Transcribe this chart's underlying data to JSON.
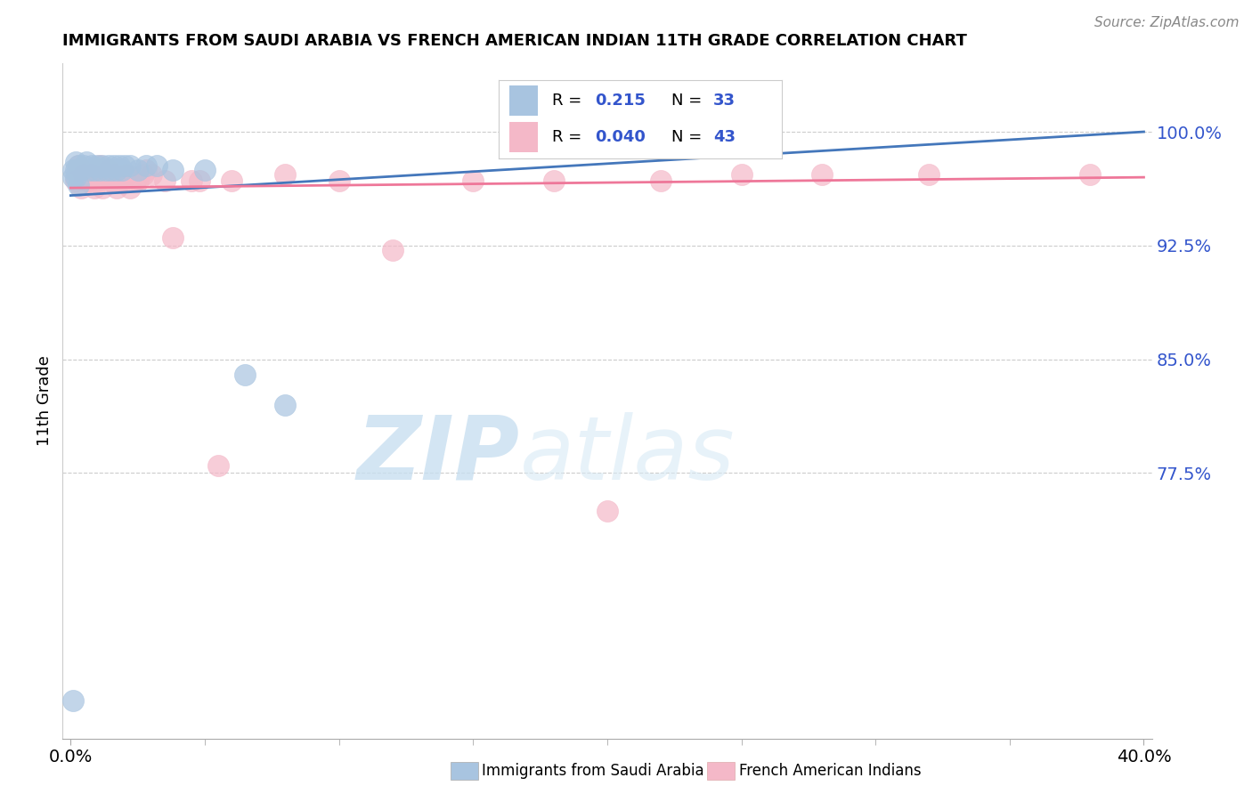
{
  "title": "IMMIGRANTS FROM SAUDI ARABIA VS FRENCH AMERICAN INDIAN 11TH GRADE CORRELATION CHART",
  "source": "Source: ZipAtlas.com",
  "ylabel": "11th Grade",
  "ytick_labels": [
    "100.0%",
    "92.5%",
    "85.0%",
    "77.5%"
  ],
  "ytick_values": [
    1.0,
    0.925,
    0.85,
    0.775
  ],
  "xlim": [
    0.0,
    0.4
  ],
  "ylim": [
    0.6,
    1.04
  ],
  "saudi_color": "#a8c4e0",
  "french_color": "#f4b8c8",
  "saudi_line_color": "#4477bb",
  "french_line_color": "#ee7799",
  "saudi_x": [
    0.002,
    0.003,
    0.004,
    0.005,
    0.006,
    0.007,
    0.008,
    0.009,
    0.01,
    0.011,
    0.012,
    0.013,
    0.014,
    0.015,
    0.016,
    0.017,
    0.018,
    0.019,
    0.02,
    0.022,
    0.025,
    0.028,
    0.032,
    0.038,
    0.05,
    0.065,
    0.08,
    0.001,
    0.002,
    0.003,
    0.001,
    0.001,
    0.002
  ],
  "saudi_y": [
    0.98,
    0.978,
    0.975,
    0.978,
    0.98,
    0.975,
    0.978,
    0.975,
    0.978,
    0.975,
    0.978,
    0.975,
    0.978,
    0.975,
    0.978,
    0.975,
    0.978,
    0.975,
    0.978,
    0.978,
    0.975,
    0.978,
    0.978,
    0.975,
    0.975,
    0.84,
    0.82,
    0.975,
    0.97,
    0.965,
    0.625,
    0.97,
    0.975
  ],
  "french_x": [
    0.002,
    0.004,
    0.006,
    0.008,
    0.01,
    0.012,
    0.014,
    0.016,
    0.018,
    0.02,
    0.022,
    0.025,
    0.028,
    0.03,
    0.038,
    0.048,
    0.06,
    0.08,
    0.1,
    0.12,
    0.15,
    0.18,
    0.22,
    0.25,
    0.28,
    0.32,
    0.38,
    0.003,
    0.005,
    0.007,
    0.009,
    0.011,
    0.013,
    0.015,
    0.017,
    0.019,
    0.021,
    0.024,
    0.027,
    0.035,
    0.045,
    0.055,
    0.2
  ],
  "french_y": [
    0.968,
    0.963,
    0.968,
    0.972,
    0.968,
    0.963,
    0.975,
    0.972,
    0.968,
    0.972,
    0.963,
    0.968,
    0.975,
    0.972,
    0.93,
    0.968,
    0.968,
    0.972,
    0.968,
    0.922,
    0.968,
    0.968,
    0.968,
    0.972,
    0.972,
    0.972,
    0.972,
    0.978,
    0.972,
    0.968,
    0.963,
    0.978,
    0.972,
    0.968,
    0.963,
    0.968,
    0.972,
    0.968,
    0.972,
    0.968,
    0.968,
    0.78,
    0.75
  ],
  "watermark_zip": "ZIP",
  "watermark_atlas": "atlas",
  "legend_r1": "R = ",
  "legend_v1": "0.215",
  "legend_n1": "N = ",
  "legend_nv1": "33",
  "legend_r2": "R = ",
  "legend_v2": "0.040",
  "legend_n2": "N = ",
  "legend_nv2": "43",
  "dpi": 100,
  "figsize": [
    14.06,
    8.92
  ]
}
